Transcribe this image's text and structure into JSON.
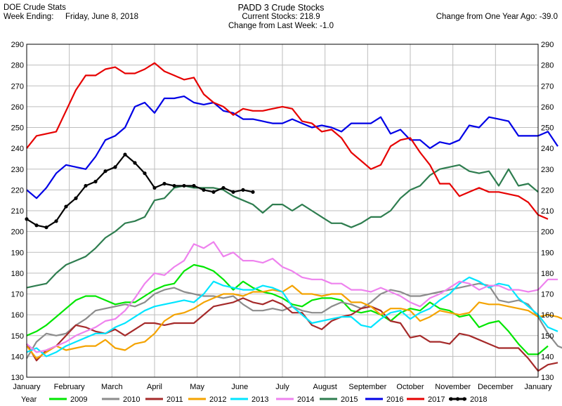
{
  "header": {
    "app_title": "DOE Crude Stats",
    "week_ending_label": "Week Ending:",
    "week_ending_value": "Friday, June 8, 2018",
    "chart_title": "PADD 3 Crude Stocks",
    "current_stocks": "Current Stocks: 218.9",
    "change_last_week": "Change from Last Week:  -1.0",
    "change_one_year": "Change from One Year Ago: -39.0"
  },
  "chart_data": {
    "type": "line",
    "title": "PADD 3 Crude Stocks",
    "x_labels": [
      "January",
      "February",
      "March",
      "April",
      "May",
      "June",
      "July",
      "August",
      "September",
      "October",
      "November",
      "December",
      "January"
    ],
    "x_range": [
      1,
      53
    ],
    "ylim": [
      130,
      290
    ],
    "y_ticks": [
      130,
      140,
      150,
      160,
      170,
      180,
      190,
      200,
      210,
      220,
      230,
      240,
      250,
      260,
      270,
      280,
      290
    ],
    "grid": true,
    "legend_position": "bottom",
    "legend_title": "Year",
    "series": [
      {
        "name": "2009",
        "color": "#00e600",
        "marker": false,
        "values": [
          150,
          152,
          155,
          159,
          163,
          167,
          169,
          169,
          167,
          165,
          166,
          166,
          169,
          172,
          174,
          175,
          181,
          184,
          183,
          181,
          177,
          172,
          176,
          173,
          171,
          170,
          168,
          165,
          164,
          167,
          168,
          168,
          167,
          162,
          161,
          162,
          160,
          157,
          161,
          163,
          162,
          166,
          163,
          162,
          159,
          160,
          154,
          156,
          157,
          152,
          146,
          141,
          141,
          145
        ]
      },
      {
        "name": "2010",
        "color": "#8c8c8c",
        "marker": false,
        "values": [
          139,
          147,
          151,
          150,
          151,
          155,
          158,
          162,
          163,
          164,
          165,
          164,
          166,
          170,
          172,
          173,
          171,
          170,
          169,
          169,
          168,
          169,
          165,
          162,
          162,
          163,
          162,
          164,
          162,
          161,
          161,
          164,
          166,
          165,
          163,
          166,
          170,
          172,
          171,
          169,
          169,
          170,
          171,
          172,
          173,
          174,
          175,
          174,
          167,
          166,
          167,
          165,
          159,
          151,
          145,
          143
        ]
      },
      {
        "name": "2011",
        "color": "#a52a2a",
        "marker": false,
        "values": [
          146,
          138,
          143,
          145,
          150,
          155,
          154,
          152,
          151,
          153,
          150,
          153,
          156,
          156,
          155,
          156,
          156,
          156,
          160,
          164,
          165,
          166,
          168,
          166,
          165,
          167,
          165,
          161,
          161,
          155,
          153,
          157,
          159,
          160,
          163,
          164,
          162,
          157,
          156,
          149,
          150,
          147,
          147,
          146,
          151,
          150,
          148,
          146,
          144,
          144,
          144,
          139,
          133,
          136,
          137
        ]
      },
      {
        "name": "2012",
        "color": "#f4a300",
        "marker": false,
        "values": [
          145,
          139,
          142,
          145,
          143,
          144,
          145,
          145,
          148,
          144,
          143,
          146,
          147,
          151,
          157,
          160,
          161,
          163,
          166,
          168,
          170,
          170,
          169,
          171,
          171,
          172,
          171,
          174,
          170,
          170,
          169,
          170,
          170,
          166,
          166,
          164,
          160,
          163,
          163,
          162,
          157,
          159,
          162,
          161,
          160,
          161,
          166,
          165,
          165,
          164,
          163,
          162,
          159,
          160,
          159,
          157,
          146
        ]
      },
      {
        "name": "2013",
        "color": "#00e5ff",
        "marker": false,
        "values": [
          142,
          144,
          140,
          142,
          145,
          147,
          149,
          151,
          151,
          154,
          156,
          159,
          162,
          164,
          165,
          166,
          167,
          166,
          170,
          176,
          174,
          173,
          172,
          172,
          174,
          173,
          171,
          164,
          160,
          156,
          157,
          158,
          159,
          159,
          155,
          154,
          158,
          161,
          162,
          158,
          161,
          163,
          167,
          170,
          175,
          178,
          176,
          173,
          175,
          174,
          168,
          164,
          160,
          154,
          152
        ]
      },
      {
        "name": "2014",
        "color": "#ee82ee",
        "marker": false,
        "values": [
          146,
          142,
          143,
          145,
          147,
          150,
          152,
          154,
          157,
          158,
          162,
          168,
          175,
          180,
          179,
          183,
          186,
          194,
          192,
          195,
          188,
          190,
          186,
          186,
          185,
          187,
          183,
          181,
          178,
          177,
          177,
          175,
          175,
          172,
          172,
          171,
          173,
          171,
          169,
          166,
          164,
          168,
          170,
          173,
          176,
          175,
          172,
          174,
          174,
          172,
          172,
          171,
          172,
          177,
          177
        ]
      },
      {
        "name": "2015",
        "color": "#2e7d4f",
        "marker": false,
        "values": [
          173,
          174,
          175,
          180,
          184,
          186,
          188,
          192,
          197,
          200,
          204,
          205,
          207,
          215,
          216,
          221,
          222,
          221,
          221,
          221,
          220,
          217,
          215,
          213,
          209,
          213,
          213,
          210,
          213,
          210,
          207,
          204,
          204,
          202,
          204,
          207,
          207,
          210,
          216,
          220,
          222,
          227,
          230,
          231,
          232,
          229,
          228,
          229,
          222,
          230,
          222,
          223,
          219
        ]
      },
      {
        "name": "2016",
        "color": "#0000e6",
        "marker": false,
        "values": [
          220,
          216,
          221,
          228,
          232,
          231,
          230,
          236,
          244,
          246,
          250,
          260,
          262,
          257,
          264,
          264,
          265,
          262,
          261,
          262,
          258,
          257,
          254,
          254,
          253,
          252,
          252,
          254,
          252,
          250,
          251,
          250,
          248,
          252,
          252,
          252,
          255,
          247,
          249,
          244,
          244,
          240,
          243,
          242,
          244,
          251,
          250,
          255,
          254,
          253,
          246,
          246,
          246,
          248,
          241
        ]
      },
      {
        "name": "2017",
        "color": "#e60000",
        "marker": false,
        "values": [
          240,
          246,
          247,
          248,
          258,
          268,
          275,
          275,
          278,
          279,
          276,
          276,
          278,
          281,
          277,
          275,
          273,
          274,
          266,
          262,
          260,
          256,
          259,
          258,
          258,
          259,
          260,
          259,
          253,
          252,
          248,
          249,
          245,
          238,
          234,
          230,
          232,
          241,
          244,
          245,
          238,
          232,
          223,
          223,
          217,
          219,
          221,
          219,
          219,
          218,
          217,
          214,
          208,
          206
        ]
      },
      {
        "name": "2018",
        "color": "#000000",
        "marker": true,
        "values": [
          206,
          203,
          202,
          205,
          212,
          216,
          222,
          224,
          229,
          231,
          237,
          233,
          228,
          221,
          223,
          222,
          222,
          222,
          220,
          219,
          221,
          219,
          220,
          219
        ]
      }
    ]
  }
}
